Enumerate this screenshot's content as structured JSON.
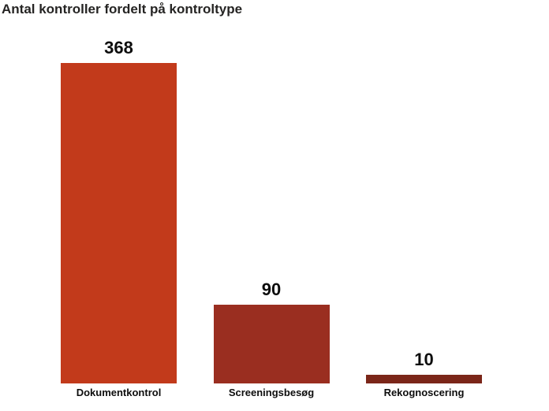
{
  "chart_data": {
    "type": "bar",
    "title": "Antal kontroller fordelt på kontroltype",
    "categories": [
      "Dokumentkontrol",
      "Screeningsbesøg",
      "Rekognoscering"
    ],
    "values": [
      368,
      90,
      10
    ],
    "data_labels": [
      "368",
      "90",
      "10"
    ],
    "bar_colors": [
      "#C23A1B",
      "#9A2E20",
      "#7B2619"
    ],
    "xlabel": "",
    "ylabel": "",
    "ylim": [
      0,
      368
    ],
    "grid": false,
    "axes_visible": false,
    "legend": "none",
    "title_color": "#252423",
    "value_label_color": "#0D0D0D",
    "category_label_color": "#0D0D0D",
    "background_color": "#FFFFFF"
  }
}
